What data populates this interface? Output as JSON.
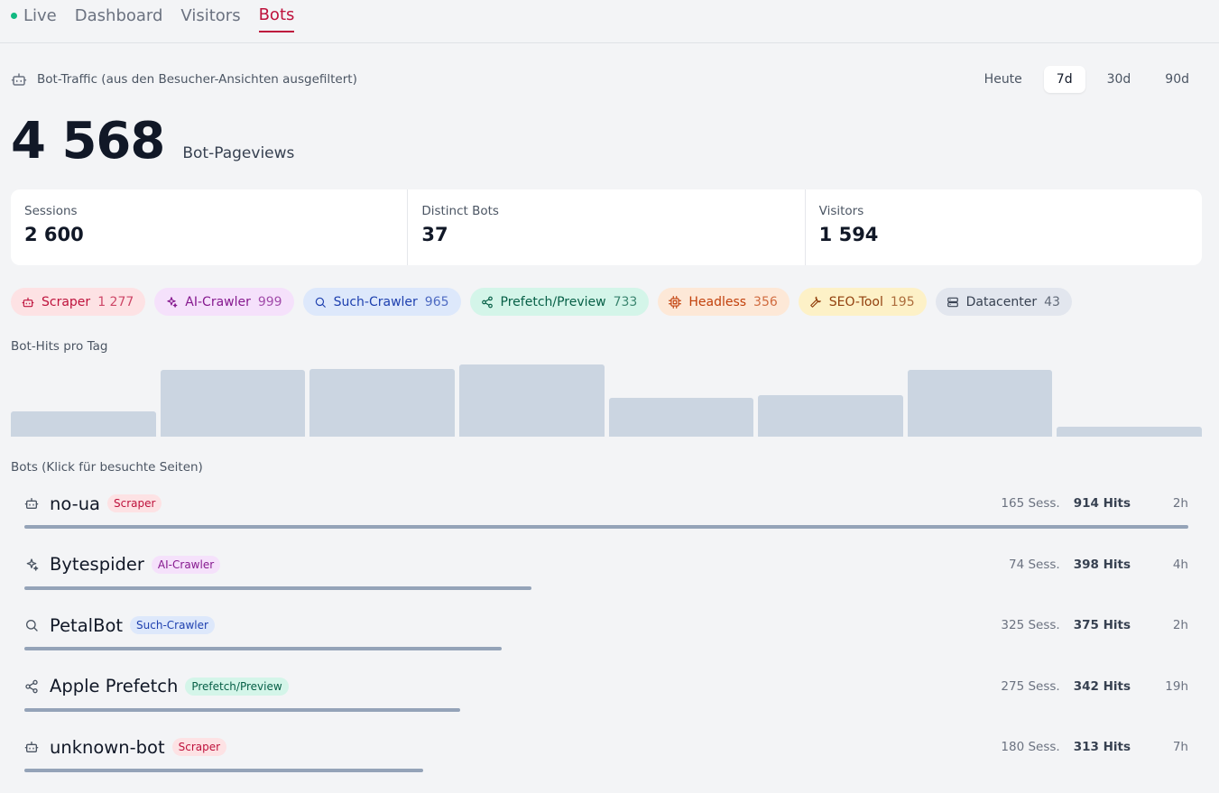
{
  "nav": {
    "live": "Live",
    "dashboard": "Dashboard",
    "visitors": "Visitors",
    "bots": "Bots"
  },
  "header": {
    "title": "Bot-Traffic (aus den Besucher-Ansichten ausgefiltert)",
    "ranges": [
      "Heute",
      "7d",
      "30d",
      "90d"
    ],
    "active_range": "7d"
  },
  "summary": {
    "total": "4 568",
    "total_label": "Bot-Pageviews"
  },
  "stats": [
    {
      "label": "Sessions",
      "value": "2 600"
    },
    {
      "label": "Distinct Bots",
      "value": "37"
    },
    {
      "label": "Visitors",
      "value": "1 594"
    }
  ],
  "chips": [
    {
      "label": "Scraper",
      "count": "1 277",
      "icon": "robot-icon",
      "bg": "#fde2e4",
      "fg": "#be123c"
    },
    {
      "label": "AI-Crawler",
      "count": "999",
      "icon": "sparkle-icon",
      "bg": "#f5e1fb",
      "fg": "#86198f"
    },
    {
      "label": "Such-Crawler",
      "count": "965",
      "icon": "search-icon",
      "bg": "#dde8fb",
      "fg": "#1e40af"
    },
    {
      "label": "Prefetch/Preview",
      "count": "733",
      "icon": "share-icon",
      "bg": "#d4f5e9",
      "fg": "#065f46"
    },
    {
      "label": "Headless",
      "count": "356",
      "icon": "chip-icon",
      "bg": "#fde8d7",
      "fg": "#c2410c"
    },
    {
      "label": "SEO-Tool",
      "count": "195",
      "icon": "wrench-icon",
      "bg": "#fdf1c7",
      "fg": "#92400e"
    },
    {
      "label": "Datacenter",
      "count": "43",
      "icon": "server-icon",
      "bg": "#e2e6ee",
      "fg": "#374151"
    }
  ],
  "chart_section_label": "Bot-Hits pro Tag",
  "chart_data": {
    "type": "bar",
    "values": [
      330,
      880,
      900,
      955,
      510,
      550,
      885,
      130
    ],
    "color": "#cbd5e1"
  },
  "bots_section_label": "Bots (Klick für besuchte Seiten)",
  "bots": [
    {
      "name": "no-ua",
      "tag": "Scraper",
      "icon": "robot-icon",
      "tag_bg": "#fde2e4",
      "tag_fg": "#be123c",
      "sessions": "165 Sess.",
      "hits": "914 Hits",
      "last": "2h",
      "hits_value": 914
    },
    {
      "name": "Bytespider",
      "tag": "AI-Crawler",
      "icon": "sparkle-icon",
      "tag_bg": "#f5e1fb",
      "tag_fg": "#86198f",
      "sessions": "74 Sess.",
      "hits": "398 Hits",
      "last": "4h",
      "hits_value": 398
    },
    {
      "name": "PetalBot",
      "tag": "Such-Crawler",
      "icon": "search-icon",
      "tag_bg": "#dde8fb",
      "tag_fg": "#1e40af",
      "sessions": "325 Sess.",
      "hits": "375 Hits",
      "last": "2h",
      "hits_value": 375
    },
    {
      "name": "Apple Prefetch",
      "tag": "Prefetch/Preview",
      "icon": "share-icon",
      "tag_bg": "#d4f5e9",
      "tag_fg": "#065f46",
      "sessions": "275 Sess.",
      "hits": "342 Hits",
      "last": "19h",
      "hits_value": 342
    },
    {
      "name": "unknown-bot",
      "tag": "Scraper",
      "icon": "robot-icon",
      "tag_bg": "#fde2e4",
      "tag_fg": "#be123c",
      "sessions": "180 Sess.",
      "hits": "313 Hits",
      "last": "7h",
      "hits_value": 313
    }
  ]
}
